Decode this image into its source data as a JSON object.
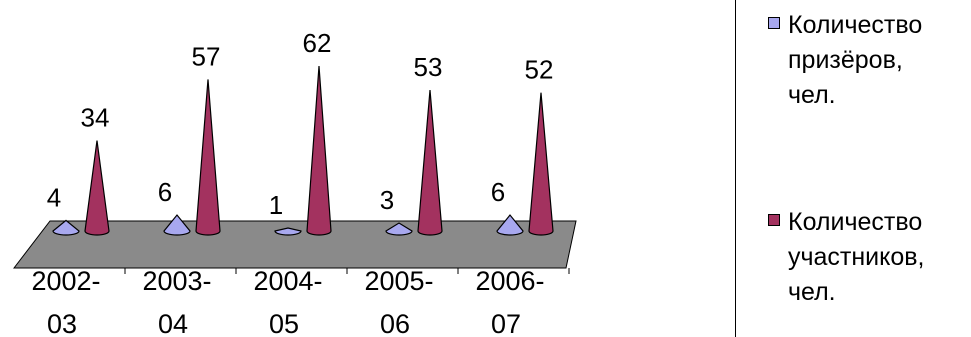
{
  "chart_data": {
    "type": "bar",
    "subtype": "3d-cone",
    "categories": [
      "2002-03",
      "2003-04",
      "2004-05",
      "2005-06",
      "2006-07"
    ],
    "series": [
      {
        "name": "Количество призёров, чел.",
        "values": [
          4,
          6,
          1,
          3,
          6
        ],
        "color": "#a8a8ef"
      },
      {
        "name": "Количество участников, чел.",
        "values": [
          34,
          57,
          62,
          53,
          52
        ],
        "color": "#a3325f"
      }
    ],
    "ylim": [
      0,
      62
    ],
    "floor_color": "#808080",
    "legend_position": "right"
  },
  "legend": {
    "items": [
      {
        "label": "Количество призёров, чел.",
        "color": "#a8a8ef"
      },
      {
        "label": "Количество участников, чел.",
        "color": "#a3325f"
      }
    ]
  }
}
